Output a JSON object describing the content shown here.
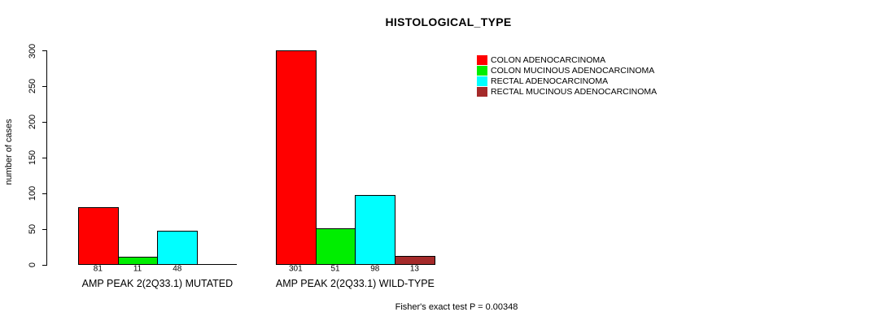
{
  "chart_data": {
    "type": "bar",
    "title": "HISTOLOGICAL_TYPE",
    "ylabel": "number of cases",
    "ylim": [
      0,
      300
    ],
    "yticks": [
      0,
      50,
      100,
      150,
      200,
      250,
      300
    ],
    "grid": false,
    "legend_position": "right",
    "categories": [
      "AMP PEAK 2(2Q33.1) MUTATED",
      "AMP PEAK 2(2Q33.1) WILD-TYPE"
    ],
    "series": [
      {
        "name": "COLON ADENOCARCINOMA",
        "color": "#FF0000",
        "values": [
          81,
          301
        ]
      },
      {
        "name": "COLON MUCINOUS ADENOCARCINOMA",
        "color": "#00EE00",
        "values": [
          11,
          51
        ]
      },
      {
        "name": "RECTAL ADENOCARCINOMA",
        "color": "#00FFFF",
        "values": [
          48,
          98
        ]
      },
      {
        "name": "RECTAL MUCINOUS ADENOCARCINOMA",
        "color": "#A52A2A",
        "values": [
          0,
          13
        ]
      }
    ],
    "bar_value_labels": [
      [
        "81",
        "11",
        "48",
        ""
      ],
      [
        "301",
        "51",
        "98",
        "13"
      ]
    ],
    "annotation": "Fisher's exact test P = 0.00348"
  }
}
